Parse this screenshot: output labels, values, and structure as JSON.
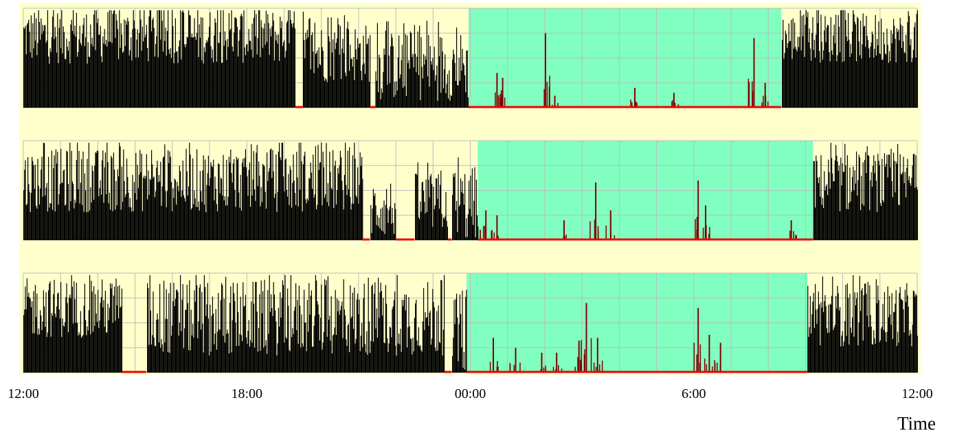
{
  "chart_data": {
    "type": "bar",
    "xlabel": "Time",
    "ylabel": "",
    "title": "",
    "x_range_hours": [
      0,
      24
    ],
    "x_tick_labels": [
      {
        "hour": 0,
        "label": "12:00"
      },
      {
        "hour": 6,
        "label": "18:00"
      },
      {
        "hour": 12,
        "label": "00:00"
      },
      {
        "hour": 18,
        "label": "6:00"
      },
      {
        "hour": 24,
        "label": "12:00"
      }
    ],
    "grid": true,
    "colors": {
      "background": "#ffffcc",
      "rest_band": "#80ffc0",
      "activity": "#000000",
      "rest_activity": "#800000",
      "zero_marker": "#ee0000",
      "grid": "#bbbbbb"
    },
    "panels": [
      {
        "rest_band_hours": [
          11.95,
          20.35
        ],
        "segments": [
          {
            "from": 0.0,
            "to": 7.3,
            "level": 0.72,
            "var": 0.28
          },
          {
            "from": 7.3,
            "to": 7.5,
            "level": 0.0,
            "var": 0.0
          },
          {
            "from": 7.5,
            "to": 9.3,
            "level": 0.55,
            "var": 0.3
          },
          {
            "from": 9.3,
            "to": 9.45,
            "level": 0.0,
            "var": 0.0
          },
          {
            "from": 9.45,
            "to": 11.95,
            "level": 0.42,
            "var": 0.35
          },
          {
            "from": 11.95,
            "to": 20.35,
            "level": 0.01,
            "var": 0.0
          },
          {
            "from": 20.35,
            "to": 24.0,
            "level": 0.7,
            "var": 0.25
          }
        ],
        "rest_spikes": [
          {
            "hour": 12.7,
            "value": 0.35
          },
          {
            "hour": 12.85,
            "value": 0.3
          },
          {
            "hour": 14.0,
            "value": 0.75
          },
          {
            "hour": 14.25,
            "value": 0.12
          },
          {
            "hour": 16.4,
            "value": 0.2
          },
          {
            "hour": 17.45,
            "value": 0.15
          },
          {
            "hour": 19.6,
            "value": 0.7
          },
          {
            "hour": 19.9,
            "value": 0.25
          }
        ]
      },
      {
        "rest_band_hours": [
          12.2,
          21.2
        ],
        "segments": [
          {
            "from": 0.0,
            "to": 9.1,
            "level": 0.6,
            "var": 0.32
          },
          {
            "from": 9.1,
            "to": 9.3,
            "level": 0.0,
            "var": 0.0
          },
          {
            "from": 9.3,
            "to": 10.0,
            "level": 0.32,
            "var": 0.3
          },
          {
            "from": 10.0,
            "to": 10.5,
            "level": 0.0,
            "var": 0.0
          },
          {
            "from": 10.5,
            "to": 11.4,
            "level": 0.38,
            "var": 0.3
          },
          {
            "from": 11.4,
            "to": 11.5,
            "level": 0.0,
            "var": 0.0
          },
          {
            "from": 11.5,
            "to": 12.2,
            "level": 0.35,
            "var": 0.4
          },
          {
            "from": 12.2,
            "to": 21.2,
            "level": 0.01,
            "var": 0.0
          },
          {
            "from": 21.2,
            "to": 24.0,
            "level": 0.58,
            "var": 0.3
          }
        ],
        "rest_spikes": [
          {
            "hour": 12.4,
            "value": 0.3
          },
          {
            "hour": 12.7,
            "value": 0.25
          },
          {
            "hour": 14.5,
            "value": 0.2
          },
          {
            "hour": 15.35,
            "value": 0.58
          },
          {
            "hour": 15.75,
            "value": 0.3
          },
          {
            "hour": 18.1,
            "value": 0.6
          },
          {
            "hour": 18.3,
            "value": 0.35
          },
          {
            "hour": 20.6,
            "value": 0.2
          }
        ]
      },
      {
        "rest_band_hours": [
          11.9,
          21.05
        ],
        "segments": [
          {
            "from": 0.0,
            "to": 2.65,
            "level": 0.65,
            "var": 0.3
          },
          {
            "from": 2.65,
            "to": 3.3,
            "level": 0.0,
            "var": 0.0
          },
          {
            "from": 3.3,
            "to": 11.3,
            "level": 0.55,
            "var": 0.38
          },
          {
            "from": 11.3,
            "to": 11.5,
            "level": 0.0,
            "var": 0.0
          },
          {
            "from": 11.5,
            "to": 11.9,
            "level": 0.4,
            "var": 0.4
          },
          {
            "from": 11.9,
            "to": 21.05,
            "level": 0.01,
            "var": 0.0
          },
          {
            "from": 21.05,
            "to": 24.0,
            "level": 0.58,
            "var": 0.32
          }
        ],
        "rest_spikes": [
          {
            "hour": 12.6,
            "value": 0.35
          },
          {
            "hour": 13.2,
            "value": 0.25
          },
          {
            "hour": 13.9,
            "value": 0.2
          },
          {
            "hour": 14.3,
            "value": 0.2
          },
          {
            "hour": 14.9,
            "value": 0.32
          },
          {
            "hour": 15.1,
            "value": 0.7
          },
          {
            "hour": 15.4,
            "value": 0.35
          },
          {
            "hour": 18.1,
            "value": 0.65
          },
          {
            "hour": 18.4,
            "value": 0.38
          },
          {
            "hour": 18.7,
            "value": 0.3
          }
        ]
      }
    ]
  }
}
